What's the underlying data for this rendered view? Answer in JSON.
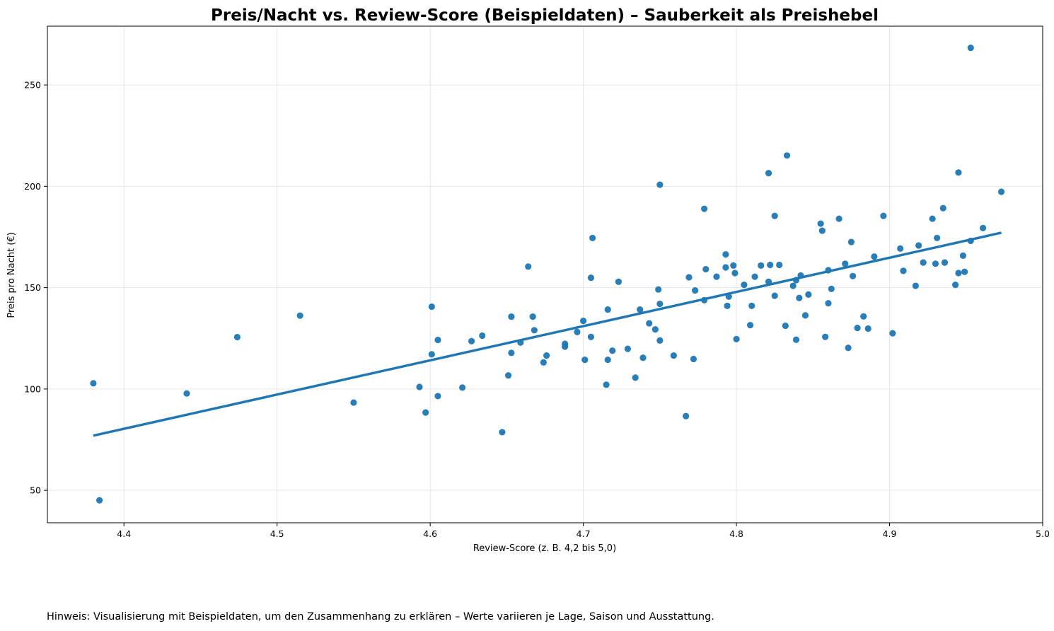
{
  "chart_data": {
    "type": "scatter",
    "title": "Preis/Nacht vs. Review-Score (Beispieldaten) – Sauberkeit als Preishebel",
    "xlabel": "Review-Score (z. B. 4,2 bis 5,0)",
    "ylabel": "Preis pro Nacht (€)",
    "xlim": [
      4.35,
      5.0
    ],
    "ylim": [
      34,
      279
    ],
    "xticks": [
      4.4,
      4.5,
      4.6,
      4.7,
      4.8,
      4.9,
      5.0
    ],
    "xtick_labels": [
      "4.4",
      "4.5",
      "4.6",
      "4.7",
      "4.8",
      "4.9",
      "5.0"
    ],
    "yticks": [
      50,
      100,
      150,
      200,
      250
    ],
    "ytick_labels": [
      "50",
      "100",
      "150",
      "200",
      "250"
    ],
    "grid": true,
    "color": "#1f77b4",
    "points": [
      [
        4.38,
        102.8
      ],
      [
        4.384,
        45.1
      ],
      [
        4.441,
        97.8
      ],
      [
        4.474,
        125.6
      ],
      [
        4.515,
        136.2
      ],
      [
        4.55,
        93.3
      ],
      [
        4.593,
        101.0
      ],
      [
        4.597,
        88.4
      ],
      [
        4.601,
        117.1
      ],
      [
        4.601,
        140.6
      ],
      [
        4.605,
        96.5
      ],
      [
        4.605,
        124.2
      ],
      [
        4.621,
        100.7
      ],
      [
        4.627,
        123.6
      ],
      [
        4.634,
        126.3
      ],
      [
        4.647,
        78.7
      ],
      [
        4.651,
        106.7
      ],
      [
        4.653,
        117.8
      ],
      [
        4.653,
        135.7
      ],
      [
        4.659,
        122.9
      ],
      [
        4.664,
        160.4
      ],
      [
        4.667,
        135.7
      ],
      [
        4.668,
        129.0
      ],
      [
        4.674,
        113.1
      ],
      [
        4.676,
        116.5
      ],
      [
        4.688,
        120.9
      ],
      [
        4.688,
        122.3
      ],
      [
        4.696,
        128.1
      ],
      [
        4.7,
        133.6
      ],
      [
        4.701,
        114.4
      ],
      [
        4.705,
        154.9
      ],
      [
        4.705,
        125.7
      ],
      [
        4.706,
        174.5
      ],
      [
        4.715,
        102.1
      ],
      [
        4.716,
        114.4
      ],
      [
        4.716,
        139.2
      ],
      [
        4.719,
        118.9
      ],
      [
        4.723,
        152.9
      ],
      [
        4.729,
        119.8
      ],
      [
        4.734,
        105.6
      ],
      [
        4.737,
        139.2
      ],
      [
        4.739,
        115.4
      ],
      [
        4.743,
        132.4
      ],
      [
        4.747,
        129.4
      ],
      [
        4.749,
        149.1
      ],
      [
        4.75,
        123.9
      ],
      [
        4.75,
        142.0
      ],
      [
        4.75,
        200.8
      ],
      [
        4.759,
        116.5
      ],
      [
        4.767,
        86.6
      ],
      [
        4.769,
        155.1
      ],
      [
        4.772,
        114.8
      ],
      [
        4.773,
        148.6
      ],
      [
        4.779,
        188.9
      ],
      [
        4.779,
        143.8
      ],
      [
        4.78,
        159.1
      ],
      [
        4.787,
        155.4
      ],
      [
        4.793,
        160.0
      ],
      [
        4.793,
        166.4
      ],
      [
        4.794,
        141.0
      ],
      [
        4.795,
        145.6
      ],
      [
        4.798,
        160.9
      ],
      [
        4.799,
        157.2
      ],
      [
        4.8,
        124.6
      ],
      [
        4.805,
        151.4
      ],
      [
        4.809,
        131.5
      ],
      [
        4.81,
        141.0
      ],
      [
        4.812,
        155.4
      ],
      [
        4.816,
        160.9
      ],
      [
        4.821,
        152.9
      ],
      [
        4.821,
        206.5
      ],
      [
        4.822,
        161.2
      ],
      [
        4.825,
        146.0
      ],
      [
        4.825,
        185.4
      ],
      [
        4.828,
        161.2
      ],
      [
        4.832,
        131.2
      ],
      [
        4.833,
        215.2
      ],
      [
        4.837,
        150.9
      ],
      [
        4.839,
        124.3
      ],
      [
        4.839,
        153.7
      ],
      [
        4.841,
        144.9
      ],
      [
        4.842,
        156.0
      ],
      [
        4.845,
        136.3
      ],
      [
        4.847,
        146.6
      ],
      [
        4.855,
        181.6
      ],
      [
        4.856,
        178.1
      ],
      [
        4.858,
        125.7
      ],
      [
        4.86,
        158.6
      ],
      [
        4.86,
        142.3
      ],
      [
        4.862,
        149.4
      ],
      [
        4.867,
        184.0
      ],
      [
        4.871,
        161.8
      ],
      [
        4.873,
        120.3
      ],
      [
        4.875,
        172.5
      ],
      [
        4.876,
        155.7
      ],
      [
        4.879,
        130.1
      ],
      [
        4.883,
        135.8
      ],
      [
        4.886,
        129.8
      ],
      [
        4.89,
        165.3
      ],
      [
        4.896,
        185.4
      ],
      [
        4.902,
        127.5
      ],
      [
        4.907,
        169.3
      ],
      [
        4.909,
        158.3
      ],
      [
        4.917,
        150.9
      ],
      [
        4.919,
        170.8
      ],
      [
        4.922,
        162.4
      ],
      [
        4.928,
        184.0
      ],
      [
        4.93,
        161.8
      ],
      [
        4.931,
        174.5
      ],
      [
        4.935,
        189.2
      ],
      [
        4.936,
        162.4
      ],
      [
        4.943,
        151.4
      ],
      [
        4.945,
        157.2
      ],
      [
        4.945,
        206.8
      ],
      [
        4.948,
        165.8
      ],
      [
        4.949,
        157.8
      ],
      [
        4.953,
        268.3
      ],
      [
        4.953,
        173.1
      ],
      [
        4.961,
        179.4
      ],
      [
        4.973,
        197.3
      ]
    ],
    "trend_line": {
      "x": [
        4.38,
        4.973
      ],
      "y": [
        77.0,
        177.1
      ]
    },
    "footnote": "Hinweis: Visualisierung mit Beispieldaten, um den Zusammenhang zu erklären – Werte variieren je Lage, Saison und Ausstattung."
  }
}
